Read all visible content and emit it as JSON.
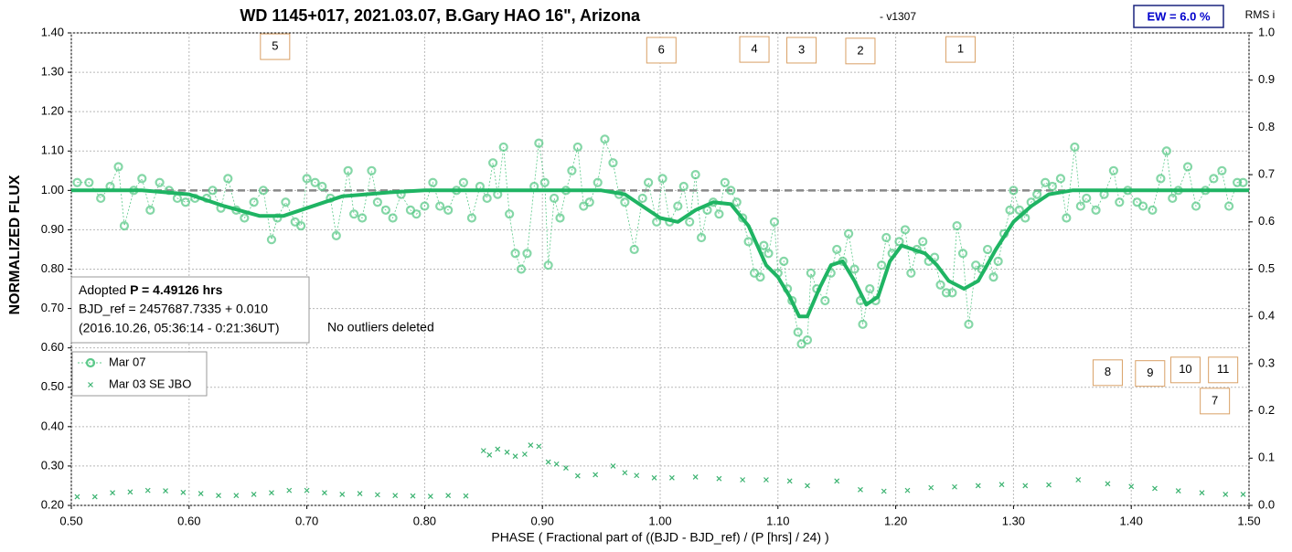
{
  "chart_data": {
    "type": "scatter",
    "title": "WD 1145+017, 2021.03.07, B.Gary HAO 16\", Arizona",
    "subtitle": "- v1307",
    "ew_label": "EW = 6.0 %",
    "y2_label": "RMS i",
    "ylabel": "NORMALIZED FLUX",
    "xlabel": "PHASE ( Fractional part of ((BJD - BJD_ref) / (P [hrs] / 24) )",
    "info_lines": [
      [
        "Adopted",
        "P = 4.49126 hrs"
      ],
      [
        "BJD_ref = 2457687.7335 + 0.010"
      ],
      [
        "(2016.10.26, 05:36:14 - 0:21:36UT)"
      ]
    ],
    "note": "No outliers deleted",
    "xlim": [
      0.5,
      1.5
    ],
    "ylim": [
      0.2,
      1.4
    ],
    "y2lim": [
      0,
      1
    ],
    "xticks": [
      {
        "value": 0.5,
        "label": "0.50"
      },
      {
        "value": 0.6,
        "label": "0.60"
      },
      {
        "value": 0.7,
        "label": "0.70"
      },
      {
        "value": 0.8,
        "label": "0.80"
      },
      {
        "value": 0.9,
        "label": "0.90"
      },
      {
        "value": 1.0,
        "label": "1.00"
      },
      {
        "value": 1.1,
        "label": "1.10"
      },
      {
        "value": 1.2,
        "label": "1.20"
      },
      {
        "value": 1.3,
        "label": "1.30"
      },
      {
        "value": 1.4,
        "label": "1.40"
      },
      {
        "value": 1.5,
        "label": "1.50"
      }
    ],
    "yticks": [
      {
        "value": 0.2,
        "label": "0.20"
      },
      {
        "value": 0.3,
        "label": "0.30"
      },
      {
        "value": 0.4,
        "label": "0.40"
      },
      {
        "value": 0.5,
        "label": "0.50"
      },
      {
        "value": 0.6,
        "label": "0.60"
      },
      {
        "value": 0.7,
        "label": "0.70"
      },
      {
        "value": 0.8,
        "label": "0.80"
      },
      {
        "value": 0.9,
        "label": "0.90"
      },
      {
        "value": 1.0,
        "label": "1.00"
      },
      {
        "value": 1.1,
        "label": "1.10"
      },
      {
        "value": 1.2,
        "label": "1.20"
      },
      {
        "value": 1.3,
        "label": "1.30"
      },
      {
        "value": 1.4,
        "label": "1.40"
      }
    ],
    "y2ticks": [
      {
        "value": 0,
        "label": "0.0"
      },
      0.1,
      0.2,
      0.3,
      0.4,
      0.5,
      0.6,
      0.7,
      0.8,
      0.9,
      {
        "value": 1,
        "label": "1.0"
      }
    ],
    "grid": true,
    "reference_line": 1,
    "legend": "lower-left",
    "series": [
      {
        "name": "Mar 07",
        "color": "#5cc98a",
        "marker": "circle",
        "x": [
          0.505,
          0.515,
          0.525,
          0.533,
          0.54,
          0.545,
          0.553,
          0.56,
          0.567,
          0.575,
          0.583,
          0.59,
          0.597,
          0.605,
          0.615,
          0.62,
          0.627,
          0.633,
          0.64,
          0.647,
          0.655,
          0.663,
          0.67,
          0.675,
          0.682,
          0.69,
          0.695,
          0.7,
          0.707,
          0.713,
          0.72,
          0.725,
          0.735,
          0.74,
          0.747,
          0.755,
          0.76,
          0.767,
          0.773,
          0.78,
          0.788,
          0.793,
          0.8,
          0.807,
          0.813,
          0.82,
          0.827,
          0.833,
          0.84,
          0.847,
          0.853,
          0.858,
          0.862,
          0.867,
          0.872,
          0.877,
          0.882,
          0.887,
          0.893,
          0.897,
          0.902,
          0.905,
          0.91,
          0.915,
          0.92,
          0.925,
          0.93,
          0.935,
          0.94,
          0.947,
          0.953,
          0.96,
          0.965,
          0.97,
          0.978,
          0.985,
          0.99,
          0.997,
          1.002,
          1.008,
          1.015,
          1.02,
          1.025,
          1.03,
          1.035,
          1.04,
          1.045,
          1.05,
          1.055,
          1.06,
          1.065,
          1.07,
          1.075,
          1.08,
          1.085,
          1.088,
          1.092,
          1.097,
          1.1,
          1.105,
          1.108,
          1.112,
          1.117,
          1.12,
          1.125,
          1.128,
          1.133,
          1.14,
          1.145,
          1.15,
          1.155,
          1.16,
          1.165,
          1.17,
          1.172,
          1.178,
          1.183,
          1.188,
          1.192,
          1.197,
          1.203,
          1.208,
          1.213,
          1.218,
          1.223,
          1.228,
          1.233,
          1.238,
          1.243,
          1.248,
          1.252,
          1.257,
          1.262,
          1.268,
          1.273,
          1.278,
          1.283,
          1.287,
          1.292,
          1.297,
          1.3,
          1.305,
          1.31,
          1.315,
          1.32,
          1.327,
          1.333,
          1.34,
          1.345,
          1.352,
          1.357,
          1.362,
          1.37,
          1.377,
          1.385,
          1.39,
          1.397,
          1.405,
          1.41,
          1.418,
          1.425,
          1.43,
          1.435,
          1.44,
          1.448,
          1.455,
          1.463,
          1.47,
          1.477,
          1.483,
          1.49,
          1.495
        ],
        "values": [
          1.02,
          1.02,
          0.98,
          1.01,
          1.06,
          0.91,
          1.0,
          1.03,
          0.95,
          1.02,
          1.0,
          0.98,
          0.97,
          0.98,
          0.98,
          1.0,
          0.955,
          1.03,
          0.95,
          0.93,
          0.97,
          1.0,
          0.875,
          0.93,
          0.97,
          0.92,
          0.91,
          1.03,
          1.02,
          1.01,
          0.98,
          0.885,
          1.05,
          0.94,
          0.93,
          1.05,
          0.97,
          0.95,
          0.93,
          0.99,
          0.95,
          0.94,
          0.96,
          1.02,
          0.96,
          0.95,
          1.0,
          1.02,
          0.93,
          1.01,
          0.98,
          1.07,
          0.99,
          1.11,
          0.94,
          0.84,
          0.8,
          0.84,
          1.01,
          1.12,
          1.02,
          0.81,
          0.98,
          0.93,
          1.0,
          1.05,
          1.11,
          0.96,
          0.97,
          1.02,
          1.13,
          1.07,
          0.99,
          0.97,
          0.85,
          0.98,
          1.02,
          0.92,
          1.03,
          0.92,
          0.96,
          1.01,
          0.92,
          1.04,
          0.88,
          0.95,
          0.97,
          0.94,
          1.02,
          1.0,
          0.97,
          0.93,
          0.87,
          0.79,
          0.78,
          0.86,
          0.84,
          0.92,
          0.79,
          0.82,
          0.75,
          0.72,
          0.64,
          0.61,
          0.62,
          0.79,
          0.75,
          0.72,
          0.79,
          0.85,
          0.82,
          0.89,
          0.8,
          0.72,
          0.66,
          0.75,
          0.72,
          0.81,
          0.88,
          0.84,
          0.87,
          0.9,
          0.79,
          0.85,
          0.87,
          0.82,
          0.83,
          0.76,
          0.74,
          0.74,
          0.91,
          0.84,
          0.66,
          0.81,
          0.8,
          0.85,
          0.78,
          0.82,
          0.89,
          0.95,
          1.0,
          0.95,
          0.93,
          0.97,
          0.99,
          1.02,
          1.01,
          1.03,
          0.93,
          1.11,
          0.96,
          0.98,
          0.95,
          0.99,
          1.05,
          0.97,
          1.0,
          0.97,
          0.96,
          0.95,
          1.03,
          1.1,
          0.98,
          1.0,
          1.06,
          0.96,
          1.0,
          1.03,
          1.05,
          0.96,
          1.02,
          1.02
        ]
      },
      {
        "color": "#1fb463",
        "marker": "line",
        "x": [
          0.5,
          0.56,
          0.6,
          0.63,
          0.66,
          0.68,
          0.7,
          0.73,
          0.77,
          0.8,
          0.95,
          0.97,
          0.985,
          1.0,
          1.015,
          1.03,
          1.045,
          1.06,
          1.075,
          1.09,
          1.1,
          1.11,
          1.118,
          1.125,
          1.135,
          1.145,
          1.155,
          1.165,
          1.175,
          1.185,
          1.195,
          1.205,
          1.215,
          1.225,
          1.235,
          1.245,
          1.258,
          1.27,
          1.285,
          1.3,
          1.315,
          1.33,
          1.35,
          1.5
        ],
        "values": [
          1.0,
          1.0,
          0.99,
          0.96,
          0.935,
          0.935,
          0.955,
          0.985,
          0.995,
          1.0,
          1.0,
          0.99,
          0.96,
          0.93,
          0.92,
          0.95,
          0.97,
          0.965,
          0.91,
          0.81,
          0.78,
          0.73,
          0.68,
          0.68,
          0.75,
          0.81,
          0.82,
          0.77,
          0.71,
          0.73,
          0.82,
          0.86,
          0.85,
          0.84,
          0.81,
          0.77,
          0.75,
          0.77,
          0.85,
          0.92,
          0.96,
          0.99,
          1.0,
          1.0
        ]
      },
      {
        "name": "Mar 03 SE JBO",
        "color": "#3cb371",
        "marker": "x",
        "x": [
          0.505,
          0.52,
          0.535,
          0.55,
          0.565,
          0.58,
          0.595,
          0.61,
          0.625,
          0.64,
          0.655,
          0.67,
          0.685,
          0.7,
          0.715,
          0.73,
          0.745,
          0.76,
          0.775,
          0.79,
          0.805,
          0.82,
          0.835,
          0.85,
          0.855,
          0.862,
          0.87,
          0.877,
          0.885,
          0.89,
          0.897,
          0.905,
          0.912,
          0.92,
          0.93,
          0.945,
          0.96,
          0.97,
          0.98,
          0.995,
          1.01,
          1.03,
          1.05,
          1.07,
          1.09,
          1.11,
          1.125,
          1.15,
          1.17,
          1.19,
          1.21,
          1.23,
          1.25,
          1.27,
          1.29,
          1.31,
          1.33,
          1.355,
          1.38,
          1.4,
          1.42,
          1.44,
          1.46,
          1.48,
          1.495
        ],
        "values": [
          0.222,
          0.222,
          0.232,
          0.234,
          0.238,
          0.237,
          0.233,
          0.23,
          0.225,
          0.225,
          0.228,
          0.232,
          0.238,
          0.238,
          0.232,
          0.228,
          0.23,
          0.227,
          0.225,
          0.224,
          0.223,
          0.225,
          0.224,
          0.339,
          0.328,
          0.343,
          0.335,
          0.325,
          0.33,
          0.353,
          0.35,
          0.31,
          0.305,
          0.295,
          0.275,
          0.278,
          0.3,
          0.283,
          0.276,
          0.27,
          0.27,
          0.272,
          0.268,
          0.265,
          0.265,
          0.262,
          0.25,
          0.262,
          0.24,
          0.236,
          0.238,
          0.245,
          0.247,
          0.25,
          0.253,
          0.25,
          0.252,
          0.265,
          0.255,
          0.248,
          0.243,
          0.237,
          0.232,
          0.228,
          0.228
        ]
      }
    ],
    "annotations": [
      {
        "text": "5",
        "x": 0.673,
        "y": 1.365
      },
      {
        "text": "6",
        "x": 1.001,
        "y": 1.356
      },
      {
        "text": "4",
        "x": 1.08,
        "y": 1.358
      },
      {
        "text": "3",
        "x": 1.12,
        "y": 1.356
      },
      {
        "text": "2",
        "x": 1.17,
        "y": 1.354
      },
      {
        "text": "1",
        "x": 1.255,
        "y": 1.358
      },
      {
        "text": "8",
        "x": 1.38,
        "y": 0.537
      },
      {
        "text": "9",
        "x": 1.416,
        "y": 0.535
      },
      {
        "text": "10",
        "x": 1.446,
        "y": 0.544
      },
      {
        "text": "11",
        "x": 1.478,
        "y": 0.544
      },
      {
        "text": "7",
        "x": 1.471,
        "y": 0.465
      }
    ]
  }
}
